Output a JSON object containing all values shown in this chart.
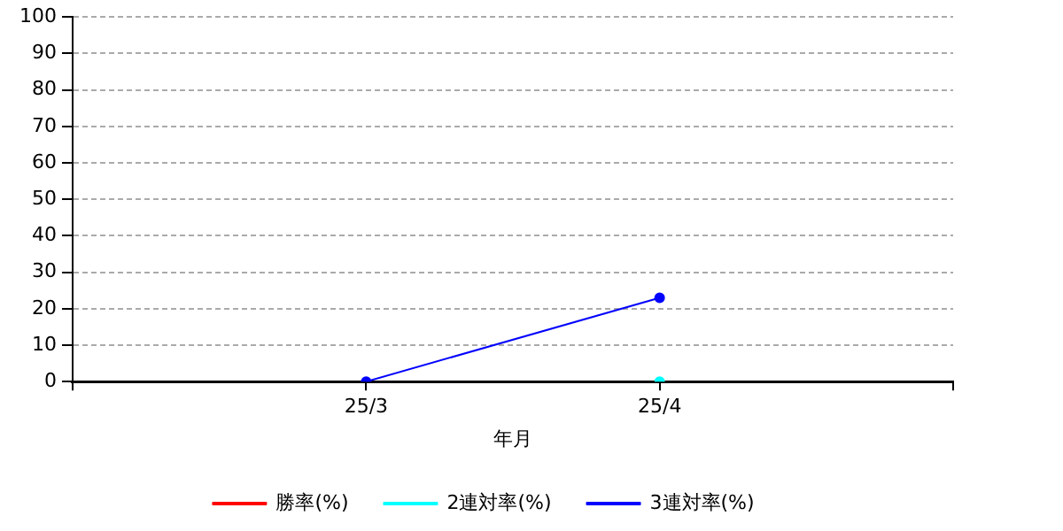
{
  "chart_data": {
    "type": "line",
    "xlabel": "年月",
    "categories": [
      "25/3",
      "25/4"
    ],
    "series": [
      {
        "name": "勝率(%)",
        "color": "#ff0000",
        "values": [
          null,
          null
        ]
      },
      {
        "name": "2連対率(%)",
        "color": "#00ffff",
        "values": [
          null,
          0
        ]
      },
      {
        "name": "3連対率(%)",
        "color": "#0000ff",
        "values": [
          0,
          23
        ]
      }
    ],
    "ylim": [
      0,
      100
    ],
    "yticks": [
      0,
      10,
      20,
      30,
      40,
      50,
      60,
      70,
      80,
      90,
      100
    ],
    "grid": "y",
    "legend": "bottom",
    "marker": "circle",
    "line_style": "solid"
  }
}
